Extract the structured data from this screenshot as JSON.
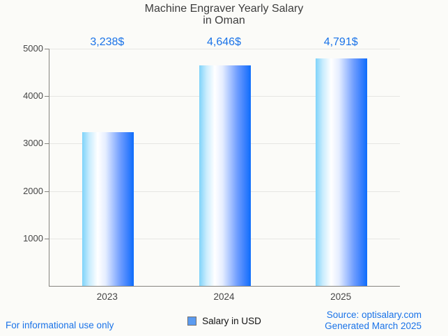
{
  "title": {
    "line1": "Machine Engraver Yearly Salary",
    "line2": "in Oman"
  },
  "chart_data": {
    "type": "bar",
    "title": "Machine Engraver Yearly Salary in Oman",
    "categories": [
      "2023",
      "2024",
      "2025"
    ],
    "values": [
      3238,
      4646,
      4791
    ],
    "value_labels": [
      "3,238$",
      "4,646$",
      "4,791$"
    ],
    "xlabel": "",
    "ylabel": "",
    "ylim": [
      0,
      5000
    ],
    "yticks": [
      1000,
      2000,
      3000,
      4000,
      5000
    ],
    "grid": true,
    "legend_position": "bottom",
    "series_name": "Salary in USD"
  },
  "legend": {
    "label": "Salary in USD"
  },
  "footer": {
    "left": "For informational use only",
    "source": "Source: optisalary.com",
    "generated": "Generated March 2025"
  },
  "colors": {
    "accent_blue": "#1a73e8",
    "bar_gradient_left": "#7ed3fa",
    "bar_gradient_middle": "#ffffff",
    "bar_gradient_right": "#0d6dfc",
    "legend_swatch_fill": "#5b9bf0",
    "legend_swatch_border": "#6f6f6f",
    "gridline": "#e6e6e3",
    "axis_line": "#85847f",
    "title_text": "#3d3d3d",
    "axis_text": "#464646",
    "background": "#fbfbf8"
  }
}
